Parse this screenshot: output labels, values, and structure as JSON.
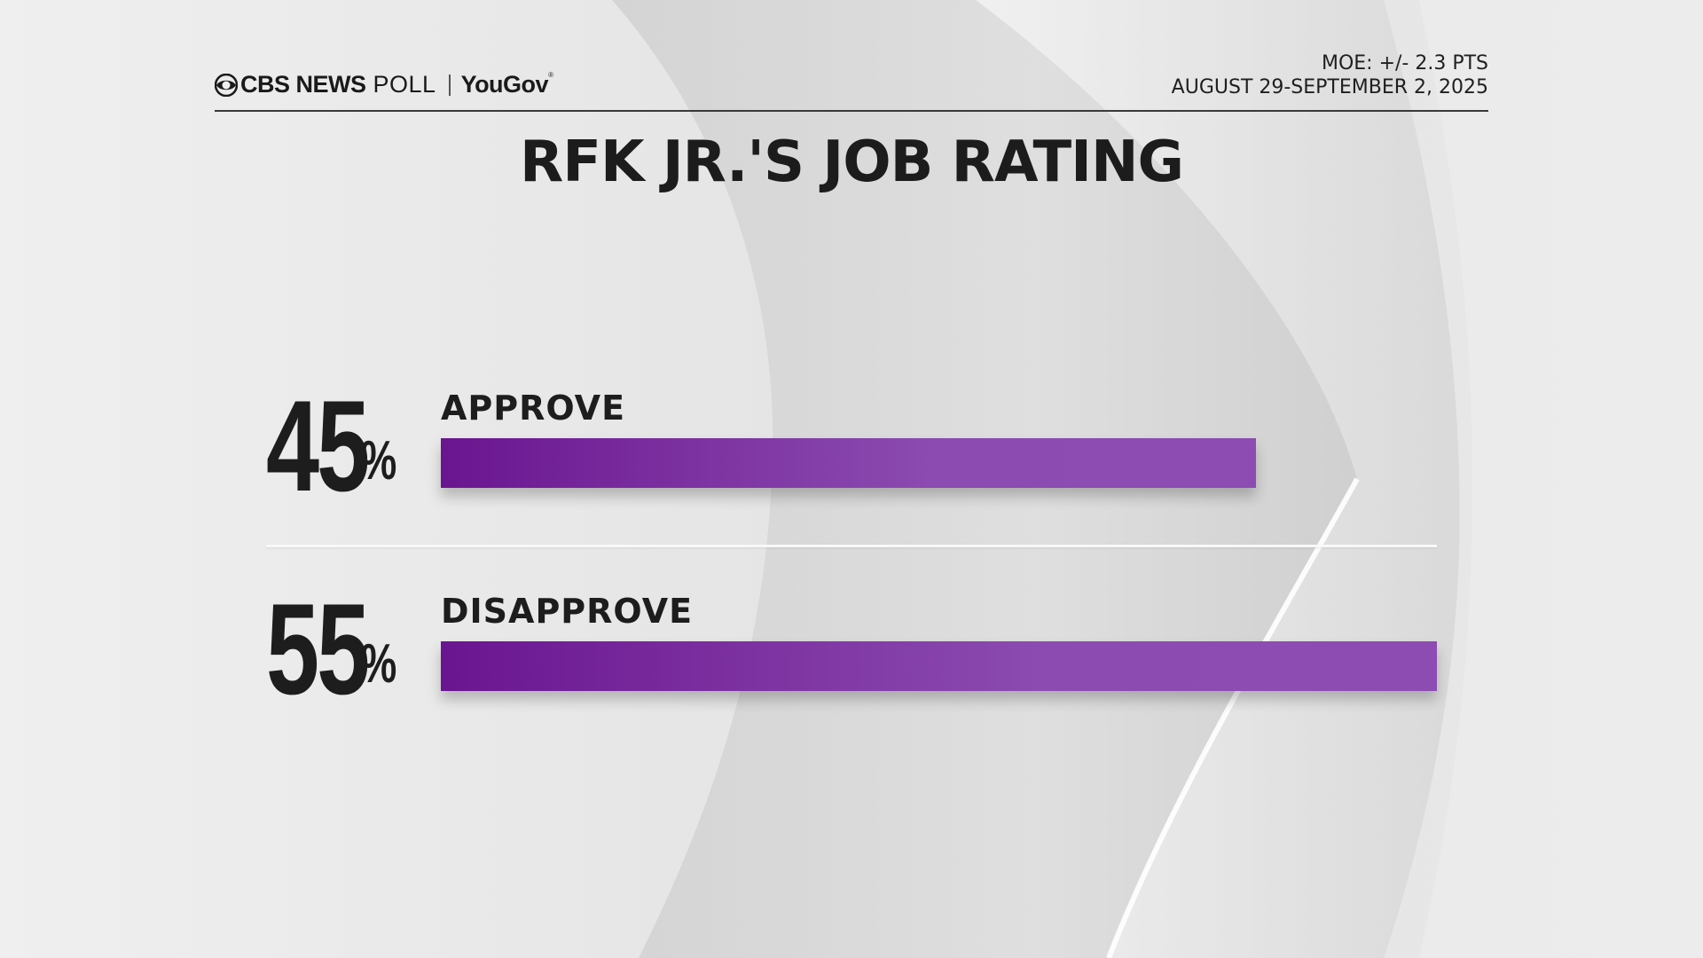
{
  "header": {
    "brand_cbs": "CBS NEWS",
    "brand_poll": "POLL",
    "brand_partner": "YouGov",
    "moe": "MOE: +/- 2.3 PTS",
    "dates": "AUGUST 29-SEPTEMBER 2, 2025"
  },
  "colors": {
    "bar_start": "#6a1590",
    "bar_end": "#8c4cb2",
    "text": "#1d1d1d"
  },
  "chart_data": {
    "type": "bar",
    "orientation": "horizontal",
    "title": "RFK JR.'S JOB RATING",
    "categories": [
      "APPROVE",
      "DISAPPROVE"
    ],
    "values": [
      45,
      55
    ],
    "value_labels": [
      "45",
      "55"
    ],
    "unit": "%",
    "xlim": [
      0,
      55
    ],
    "grid": false,
    "legend": "none"
  }
}
